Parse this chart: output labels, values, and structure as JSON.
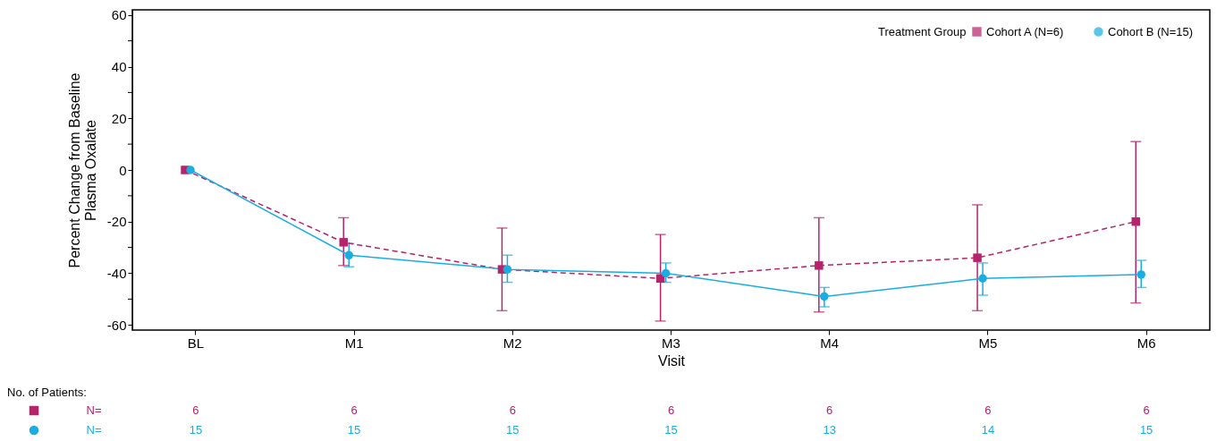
{
  "chart_data": {
    "type": "line",
    "xlabel": "Visit",
    "ylabel": "Percent Change from Baseline\nPlasma Oxalate",
    "legend_title": "Treatment Group",
    "legend": "top right",
    "categories": [
      "BL",
      "M1",
      "M2",
      "M3",
      "M4",
      "M5",
      "M6"
    ],
    "grid": false,
    "ylim": [
      -62,
      62
    ],
    "yticks": [
      -60,
      {
        "value": -50,
        "label": null
      },
      -40,
      {
        "value": -30,
        "label": null
      },
      -20,
      {
        "value": -10,
        "label": null
      },
      0,
      {
        "value": 10,
        "label": null
      },
      20,
      {
        "value": 30,
        "label": null
      },
      40,
      {
        "value": 50,
        "label": null
      },
      60
    ],
    "series": [
      {
        "name": "Cohort A (N=6)",
        "color": "#b5236b",
        "marker": "square",
        "line_style": "dashed",
        "values": [
          0,
          -28,
          -38.5,
          -42,
          -37,
          -34,
          -20
        ],
        "errors": [
          null,
          [
            -37,
            -18.5
          ],
          [
            -54.5,
            -22.5
          ],
          [
            -58.5,
            -25
          ],
          [
            -55,
            -18.5
          ],
          [
            -54.5,
            -13.5
          ],
          [
            -51.5,
            11
          ]
        ]
      },
      {
        "name": "Cohort B (N=15)",
        "color": "#19ade0",
        "marker": "circle",
        "line_style": "solid",
        "values": [
          0,
          -33,
          -38.5,
          -40,
          -49,
          -42,
          -40.5
        ],
        "errors": [
          null,
          [
            -37.5,
            -28.5
          ],
          [
            -43.5,
            -33
          ],
          [
            -43.5,
            -36
          ],
          [
            -53,
            -45.5
          ],
          [
            -48.5,
            -36
          ],
          [
            -45.5,
            -35
          ]
        ]
      }
    ],
    "annotations": [
      "No. of Patients:",
      "N=",
      "6",
      "6",
      "6",
      "6",
      "6",
      "6",
      "6",
      "N=",
      "15",
      "15",
      "15",
      "15",
      "13",
      "14",
      "15"
    ]
  }
}
